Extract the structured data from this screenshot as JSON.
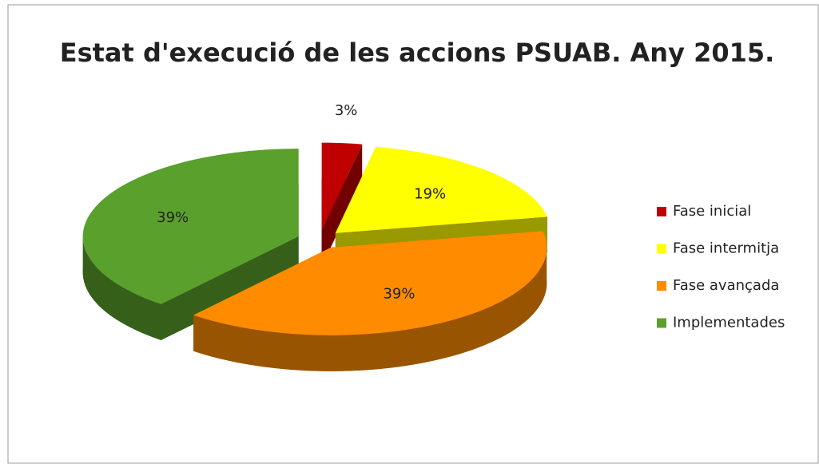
{
  "chart_data": {
    "type": "pie",
    "title": "Estat d'execució de les accions PSUAB. Any 2015.",
    "categories": [
      "Fase inicial",
      "Fase intermitja",
      "Fase avançada",
      "Implementades"
    ],
    "values": [
      3,
      19,
      39,
      39
    ],
    "value_labels": [
      "3%",
      "19%",
      "39%",
      "39%"
    ],
    "colors": [
      "#c00000",
      "#ffff00",
      "#ff8c00",
      "#5aa02c"
    ],
    "legend": "right"
  }
}
